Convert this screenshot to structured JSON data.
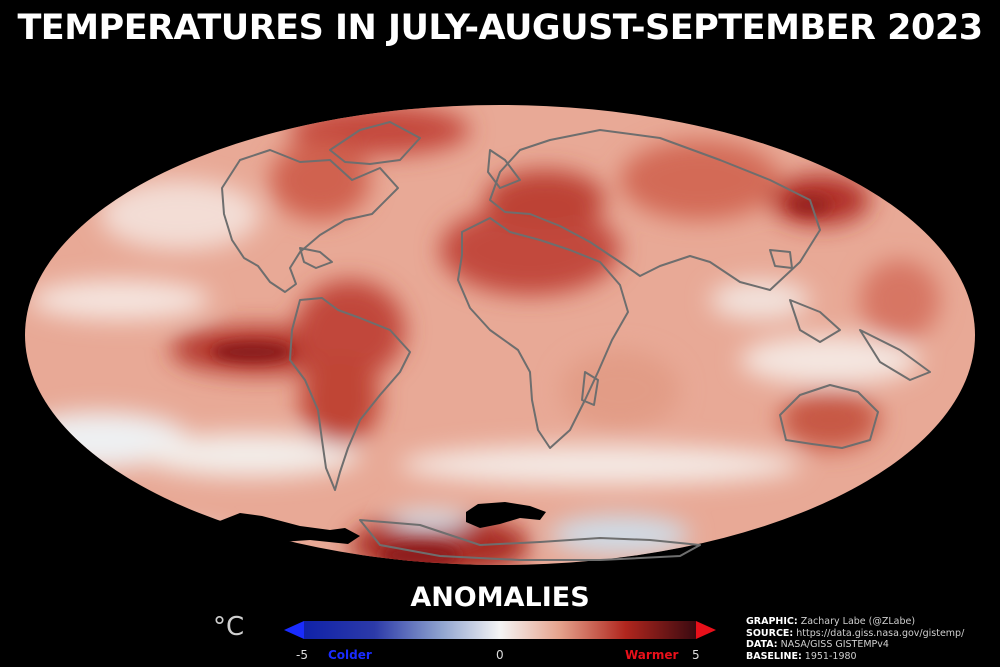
{
  "title": "TEMPERATURES IN JULY-AUGUST-SEPTEMBER 2023",
  "colorbar": {
    "title": "ANOMALIES",
    "unit": "°C",
    "min_label": "-5",
    "mid_label": "0",
    "max_label": "5",
    "cold_label": "Colder",
    "warm_label": "Warmer",
    "cold_color": "#1a2cff",
    "warm_color": "#e8101a",
    "range": [
      -5,
      5
    ]
  },
  "credits": {
    "graphic_key": "GRAPHIC:",
    "graphic_val": "Zachary Labe (@ZLabe)",
    "source_key": "SOURCE:",
    "source_val": "https://data.giss.nasa.gov/gistemp/",
    "data_key": "DATA:",
    "data_val": "NASA/GISS GISTEMPv4",
    "baseline_key": "BASELINE:",
    "baseline_val": "1951-1980"
  }
}
